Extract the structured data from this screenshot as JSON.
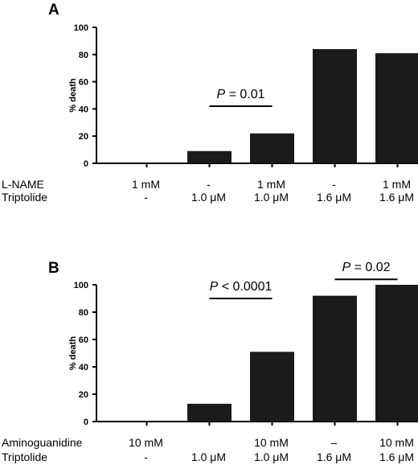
{
  "chart_data": [
    {
      "type": "bar",
      "panel": "A",
      "ylabel": "% death",
      "ylim": [
        0,
        100
      ],
      "yticks": [
        0,
        20,
        40,
        60,
        80,
        100
      ],
      "values": [
        0,
        9,
        22,
        84,
        81
      ],
      "condition_rows": [
        {
          "name": "L-NAME",
          "values": [
            "1 mM",
            "-",
            "1 mM",
            "-",
            "1 mM"
          ]
        },
        {
          "name": "Triptolide",
          "values": [
            "-",
            "1.0 μM",
            "1.0 μM",
            "1.6 μM",
            "1.6 μM"
          ]
        }
      ],
      "annotations": [
        {
          "from_bar": 1,
          "to_bar": 2,
          "p_label": "P",
          "p_rest": " = 0.01",
          "y": 42
        }
      ]
    },
    {
      "type": "bar",
      "panel": "B",
      "ylabel": "% death",
      "ylim": [
        0,
        100
      ],
      "yticks": [
        0,
        20,
        40,
        60,
        80,
        100
      ],
      "values": [
        0,
        13,
        51,
        92,
        100
      ],
      "condition_rows": [
        {
          "name": "Aminoguanidine",
          "values": [
            "10 mM",
            "",
            "10 mM",
            "–",
            "10 mM"
          ]
        },
        {
          "name": "Triptolide",
          "values": [
            "-",
            "1.0 μM",
            "1.0 μM",
            "1.6 μM",
            "1.6 μM"
          ]
        }
      ],
      "annotations": [
        {
          "from_bar": 1,
          "to_bar": 2,
          "p_label": "P",
          "p_rest": " < 0.0001",
          "y": 90
        },
        {
          "from_bar": 3,
          "to_bar": 4,
          "p_label": "P",
          "p_rest": " = 0.02",
          "y": 104
        }
      ]
    }
  ]
}
